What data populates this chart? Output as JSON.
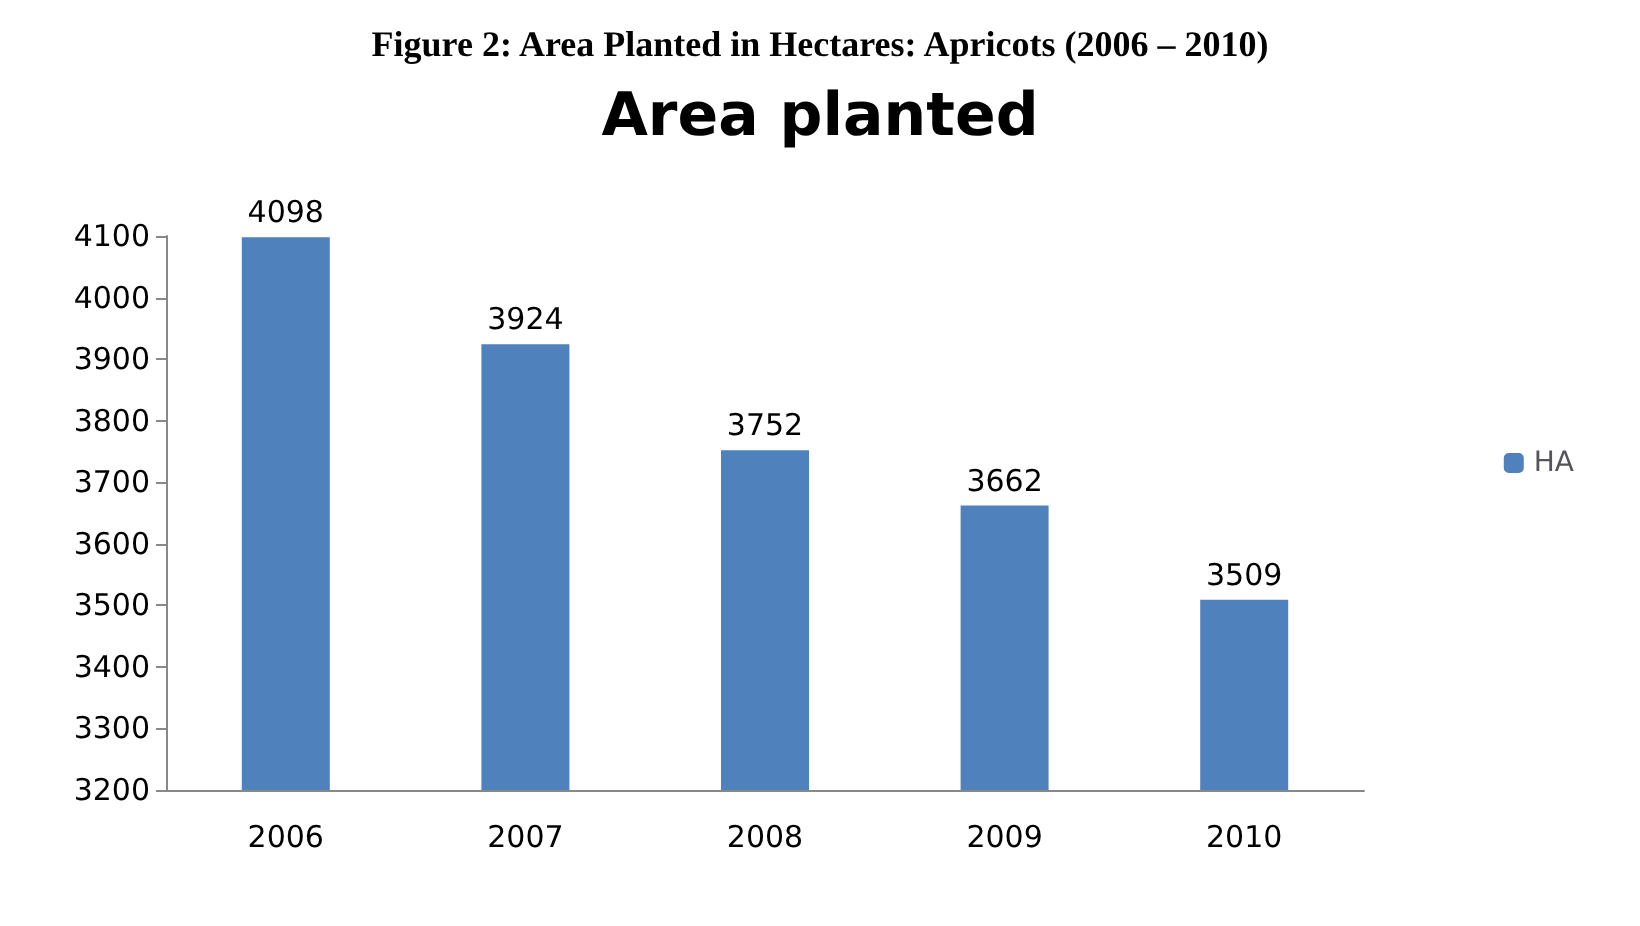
{
  "chart_data": {
    "type": "bar",
    "title": "Area planted",
    "annotations": [
      "Figure 2: Area Planted in Hectares: Apricots (2006 – 2010)"
    ],
    "categories": [
      "2006",
      "2007",
      "2008",
      "2009",
      "2010"
    ],
    "series": [
      {
        "name": "HA",
        "color": "#4f81bd",
        "values": [
          4098,
          3924,
          3752,
          3662,
          3509
        ]
      }
    ],
    "ylim": [
      3200,
      4100
    ],
    "yticks": [
      3200,
      3300,
      3400,
      3500,
      3600,
      3700,
      3800,
      3900,
      4000,
      4100
    ],
    "data_labels": true,
    "grid": false,
    "legend": "right"
  }
}
